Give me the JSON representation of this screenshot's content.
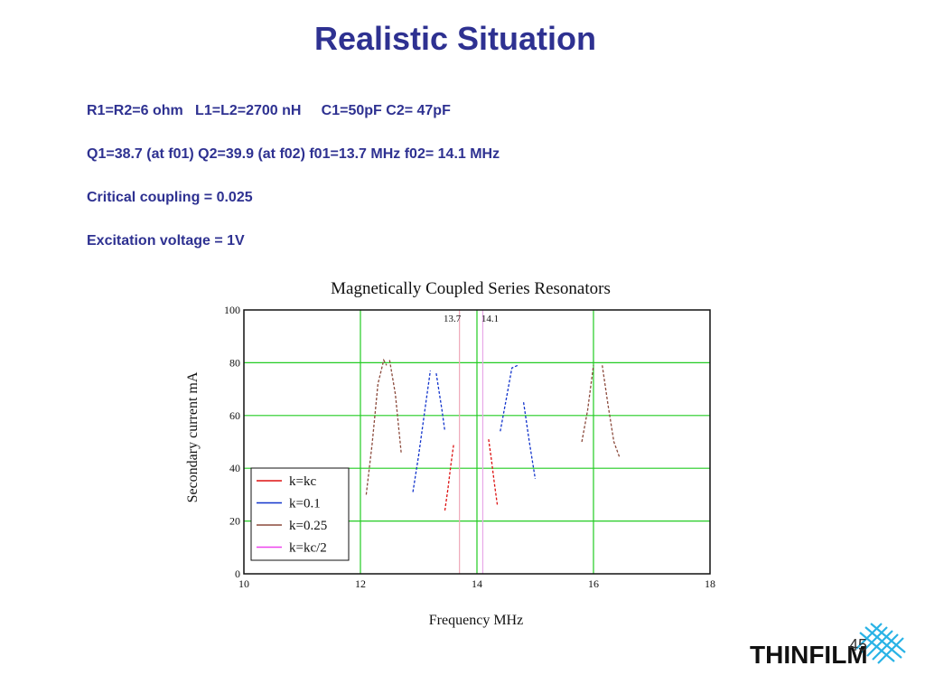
{
  "slide": {
    "title": "Realistic Situation",
    "lines": [
      "R1=R2=6 ohm   L1=L2=2700 nH     C1=50pF C2= 47pF",
      "Q1=38.7 (at f01) Q2=39.9 (at f02) f01=13.7 MHz f02= 14.1 MHz",
      "Critical coupling = 0.025",
      "Excitation voltage = 1V"
    ],
    "page_number": "45",
    "logo_text": "THINFILM",
    "colors": {
      "title": "#2e3191",
      "text": "#2e3191"
    }
  },
  "chart_data": {
    "type": "line",
    "title": "Magnetically Coupled Series Resonators",
    "xlabel": "Frequency MHz",
    "ylabel": "Secondary current mA",
    "xlim": [
      10,
      18
    ],
    "ylim": [
      0,
      100
    ],
    "xticks": [
      10,
      12,
      14,
      16,
      18
    ],
    "yticks": [
      0,
      20,
      40,
      60,
      80,
      100
    ],
    "grid": true,
    "grid_color": "#22cc22",
    "vlines": [
      {
        "x": 13.7,
        "label": "13.7",
        "color": "#f0a8b8"
      },
      {
        "x": 14.1,
        "label": "14.1",
        "color": "#e8a8e8"
      }
    ],
    "legend": {
      "position": "bottom-left",
      "entries": [
        "k=kc",
        "k=0.1",
        "k=0.25",
        "k=kc/2"
      ]
    },
    "series": [
      {
        "name": "k=kc",
        "color": "#dd1111",
        "segments": [
          [
            [
              13.45,
              24
            ],
            [
              13.5,
              32
            ],
            [
              13.55,
              41
            ],
            [
              13.6,
              49
            ]
          ],
          [
            [
              14.2,
              51
            ],
            [
              14.25,
              43
            ],
            [
              14.3,
              34
            ],
            [
              14.35,
              26
            ]
          ]
        ]
      },
      {
        "name": "k=0.1",
        "color": "#1133cc",
        "segments": [
          [
            [
              12.9,
              31
            ],
            [
              13.0,
              45
            ],
            [
              13.1,
              61
            ],
            [
              13.2,
              77
            ]
          ],
          [
            [
              13.3,
              76
            ],
            [
              13.4,
              62
            ],
            [
              13.45,
              54
            ]
          ],
          [
            [
              14.4,
              54
            ],
            [
              14.5,
              66
            ],
            [
              14.6,
              78
            ],
            [
              14.7,
              79
            ]
          ],
          [
            [
              14.8,
              65
            ],
            [
              14.9,
              50
            ],
            [
              15.0,
              36
            ]
          ]
        ]
      },
      {
        "name": "k=0.25",
        "color": "#8b4a3c",
        "segments": [
          [
            [
              12.1,
              30
            ],
            [
              12.2,
              49
            ],
            [
              12.3,
              72
            ],
            [
              12.4,
              81
            ],
            [
              12.45,
              79
            ]
          ],
          [
            [
              12.5,
              81
            ],
            [
              12.6,
              68
            ],
            [
              12.7,
              46
            ]
          ],
          [
            [
              15.8,
              50
            ],
            [
              15.9,
              62
            ],
            [
              16.0,
              79
            ]
          ],
          [
            [
              16.15,
              79
            ],
            [
              16.25,
              64
            ],
            [
              16.35,
              50
            ],
            [
              16.45,
              44
            ]
          ]
        ]
      },
      {
        "name": "k=kc/2",
        "color": "#ee44ee",
        "segments": []
      }
    ]
  }
}
